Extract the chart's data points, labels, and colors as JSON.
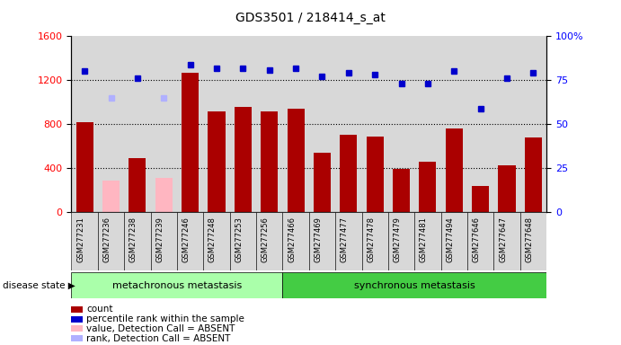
{
  "title": "GDS3501 / 218414_s_at",
  "samples": [
    "GSM277231",
    "GSM277236",
    "GSM277238",
    "GSM277239",
    "GSM277246",
    "GSM277248",
    "GSM277253",
    "GSM277256",
    "GSM277466",
    "GSM277469",
    "GSM277477",
    "GSM277478",
    "GSM277479",
    "GSM277481",
    "GSM277494",
    "GSM277646",
    "GSM277647",
    "GSM277648"
  ],
  "bar_values": [
    820,
    290,
    490,
    310,
    1270,
    920,
    960,
    920,
    940,
    540,
    700,
    690,
    390,
    460,
    760,
    240,
    430,
    680
  ],
  "bar_colors": [
    "#aa0000",
    "#ffb6c1",
    "#aa0000",
    "#ffb6c1",
    "#aa0000",
    "#aa0000",
    "#aa0000",
    "#aa0000",
    "#aa0000",
    "#aa0000",
    "#aa0000",
    "#aa0000",
    "#aa0000",
    "#aa0000",
    "#aa0000",
    "#aa0000",
    "#aa0000",
    "#aa0000"
  ],
  "rank_values": [
    80,
    65,
    76,
    65,
    84,
    82,
    82,
    81,
    82,
    77,
    79,
    78,
    73,
    73,
    80,
    59,
    76,
    79
  ],
  "rank_colors": [
    "#0000cc",
    "#b0b0ff",
    "#0000cc",
    "#b0b0ff",
    "#0000cc",
    "#0000cc",
    "#0000cc",
    "#0000cc",
    "#0000cc",
    "#0000cc",
    "#0000cc",
    "#0000cc",
    "#0000cc",
    "#0000cc",
    "#0000cc",
    "#0000cc",
    "#0000cc",
    "#0000cc"
  ],
  "absent_indices": [
    1,
    3
  ],
  "group1_label": "metachronous metastasis",
  "group1_count": 8,
  "group2_label": "synchronous metastasis",
  "group2_count": 10,
  "ylim_left": [
    0,
    1600
  ],
  "ylim_right": [
    0,
    100
  ],
  "yticks_left": [
    0,
    400,
    800,
    1200,
    1600
  ],
  "ytick_labels_left": [
    "0",
    "400",
    "800",
    "1200",
    "1600"
  ],
  "yticks_right": [
    0,
    25,
    50,
    75,
    100
  ],
  "ytick_labels_right": [
    "0",
    "25",
    "50",
    "75",
    "100%"
  ],
  "bg_color": "#d8d8d8",
  "group1_color": "#aaffaa",
  "group2_color": "#44cc44",
  "legend_items": [
    {
      "label": "count",
      "color": "#aa0000"
    },
    {
      "label": "percentile rank within the sample",
      "color": "#0000cc"
    },
    {
      "label": "value, Detection Call = ABSENT",
      "color": "#ffb6c1"
    },
    {
      "label": "rank, Detection Call = ABSENT",
      "color": "#b0b0ff"
    }
  ]
}
